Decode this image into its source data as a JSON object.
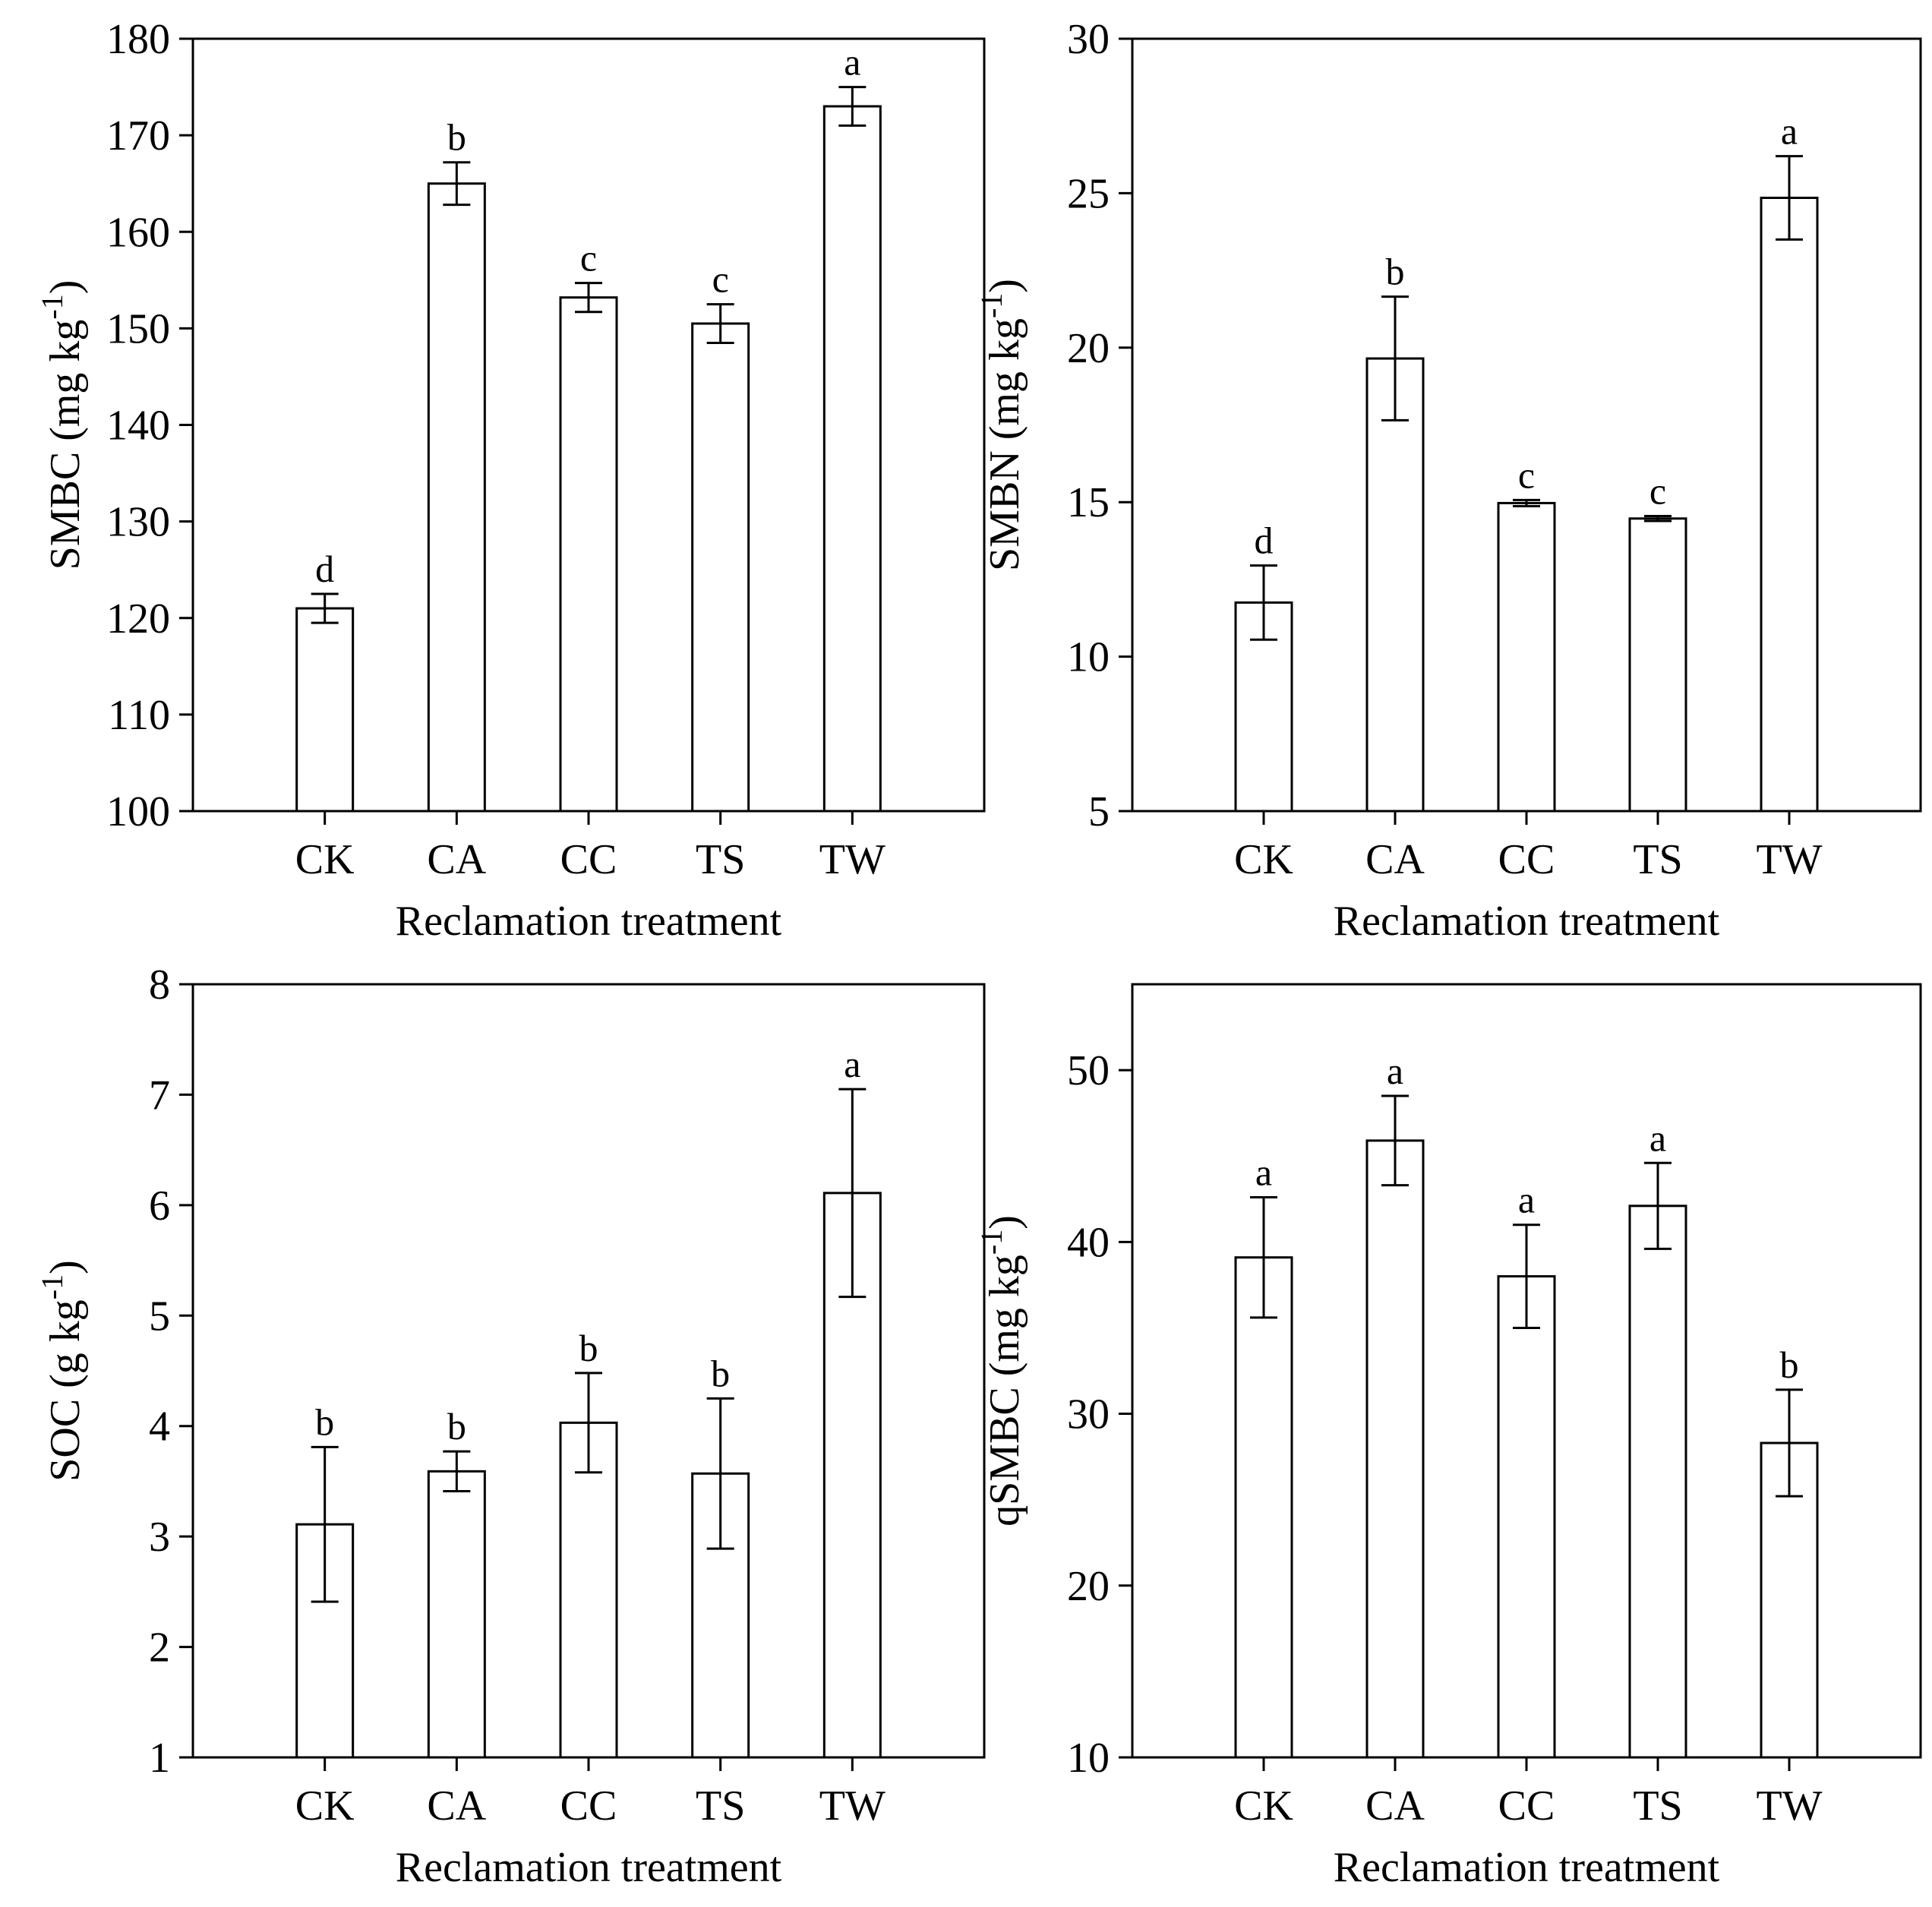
{
  "chart_data": [
    {
      "id": "smbc",
      "type": "bar",
      "categories": [
        "CK",
        "CA",
        "CC",
        "TS",
        "TW"
      ],
      "values": [
        121,
        165,
        153.2,
        150.5,
        173
      ],
      "errors": [
        1.5,
        2.2,
        1.5,
        2,
        2
      ],
      "letters": [
        "d",
        "b",
        "c",
        "c",
        "a"
      ],
      "ylim": [
        100,
        180
      ],
      "yticks": [
        "100",
        "110",
        "120",
        "130",
        "140",
        "150",
        "160",
        "170",
        "180"
      ],
      "xlabel": "Reclamation treatment",
      "ylabel": {
        "main": "SMBC (mg kg",
        "sup": "-1",
        "close": ")"
      }
    },
    {
      "id": "smbn",
      "type": "bar",
      "categories": [
        "CK",
        "CA",
        "CC",
        "TS",
        "TW"
      ],
      "values": [
        11.75,
        19.65,
        14.97,
        14.47,
        24.85
      ],
      "errors": [
        1.2,
        2.0,
        0.1,
        0.08,
        1.35
      ],
      "letters": [
        "d",
        "b",
        "c",
        "c",
        "a"
      ],
      "ylim": [
        5,
        30
      ],
      "yticks": [
        "5",
        "10",
        "15",
        "20",
        "25",
        "30"
      ],
      "xlabel": "Reclamation treatment",
      "ylabel": {
        "main": "SMBN (mg kg",
        "sup": "-1",
        "close": ")"
      }
    },
    {
      "id": "soc",
      "type": "bar",
      "categories": [
        "CK",
        "CA",
        "CC",
        "TS",
        "TW"
      ],
      "values": [
        3.11,
        3.59,
        4.03,
        3.57,
        6.11
      ],
      "errors": [
        0.7,
        0.18,
        0.45,
        0.68,
        0.94
      ],
      "letters": [
        "b",
        "b",
        "b",
        "b",
        "a"
      ],
      "ylim": [
        1,
        8
      ],
      "yticks": [
        "1",
        "2",
        "3",
        "4",
        "5",
        "6",
        "7",
        "8"
      ],
      "xlabel": "Reclamation treatment",
      "ylabel": {
        "main": "SOC (g kg",
        "sup": "-1",
        "close": ")"
      }
    },
    {
      "id": "qsmbc",
      "type": "bar",
      "categories": [
        "CK",
        "CA",
        "CC",
        "TS",
        "TW"
      ],
      "values": [
        39.1,
        45.9,
        38,
        42.1,
        28.3
      ],
      "errors": [
        3.5,
        2.6,
        3,
        2.5,
        3.1
      ],
      "letters": [
        "a",
        "a",
        "a",
        "a",
        "b"
      ],
      "ylim": [
        10,
        55
      ],
      "yticks": [
        "10",
        "20",
        "30",
        "40",
        "50"
      ],
      "xlabel": "Reclamation treatment",
      "ylabel": {
        "main": "qSMBC (mg kg",
        "sup": "-1",
        "close": ")"
      }
    }
  ]
}
